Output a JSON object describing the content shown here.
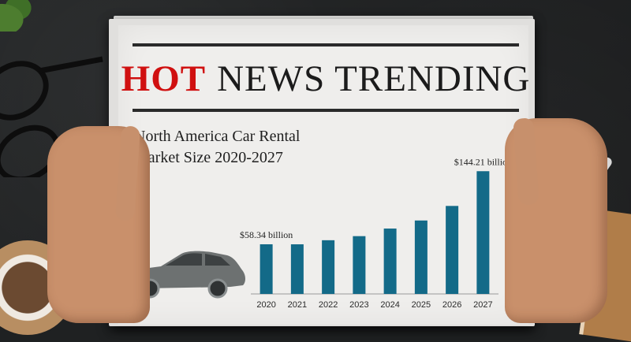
{
  "headline": {
    "hot": "HOT",
    "rest": "NEWS TRENDING"
  },
  "subtitle": {
    "line1": "North America Car Rental",
    "line2": "Market Size 2020-2027"
  },
  "chart_data": {
    "type": "bar",
    "title": "North America Car Rental Market Size 2020-2027",
    "categories": [
      "2020",
      "2021",
      "2022",
      "2023",
      "2024",
      "2025",
      "2026",
      "2027"
    ],
    "values": [
      58.34,
      58.3,
      63.1,
      67.9,
      76.8,
      86.3,
      103.4,
      144.21
    ],
    "value_labels": {
      "first": "$58.34 billion",
      "last": "$144.21 billion"
    },
    "ylim": [
      0,
      150
    ],
    "bar_color": "#136a88",
    "grid": false
  },
  "colors": {
    "hot_red": "#d01010",
    "text_dark": "#1b1b1b",
    "bar_blue": "#136a88"
  },
  "icons": {
    "car": "car-silhouette-icon"
  }
}
